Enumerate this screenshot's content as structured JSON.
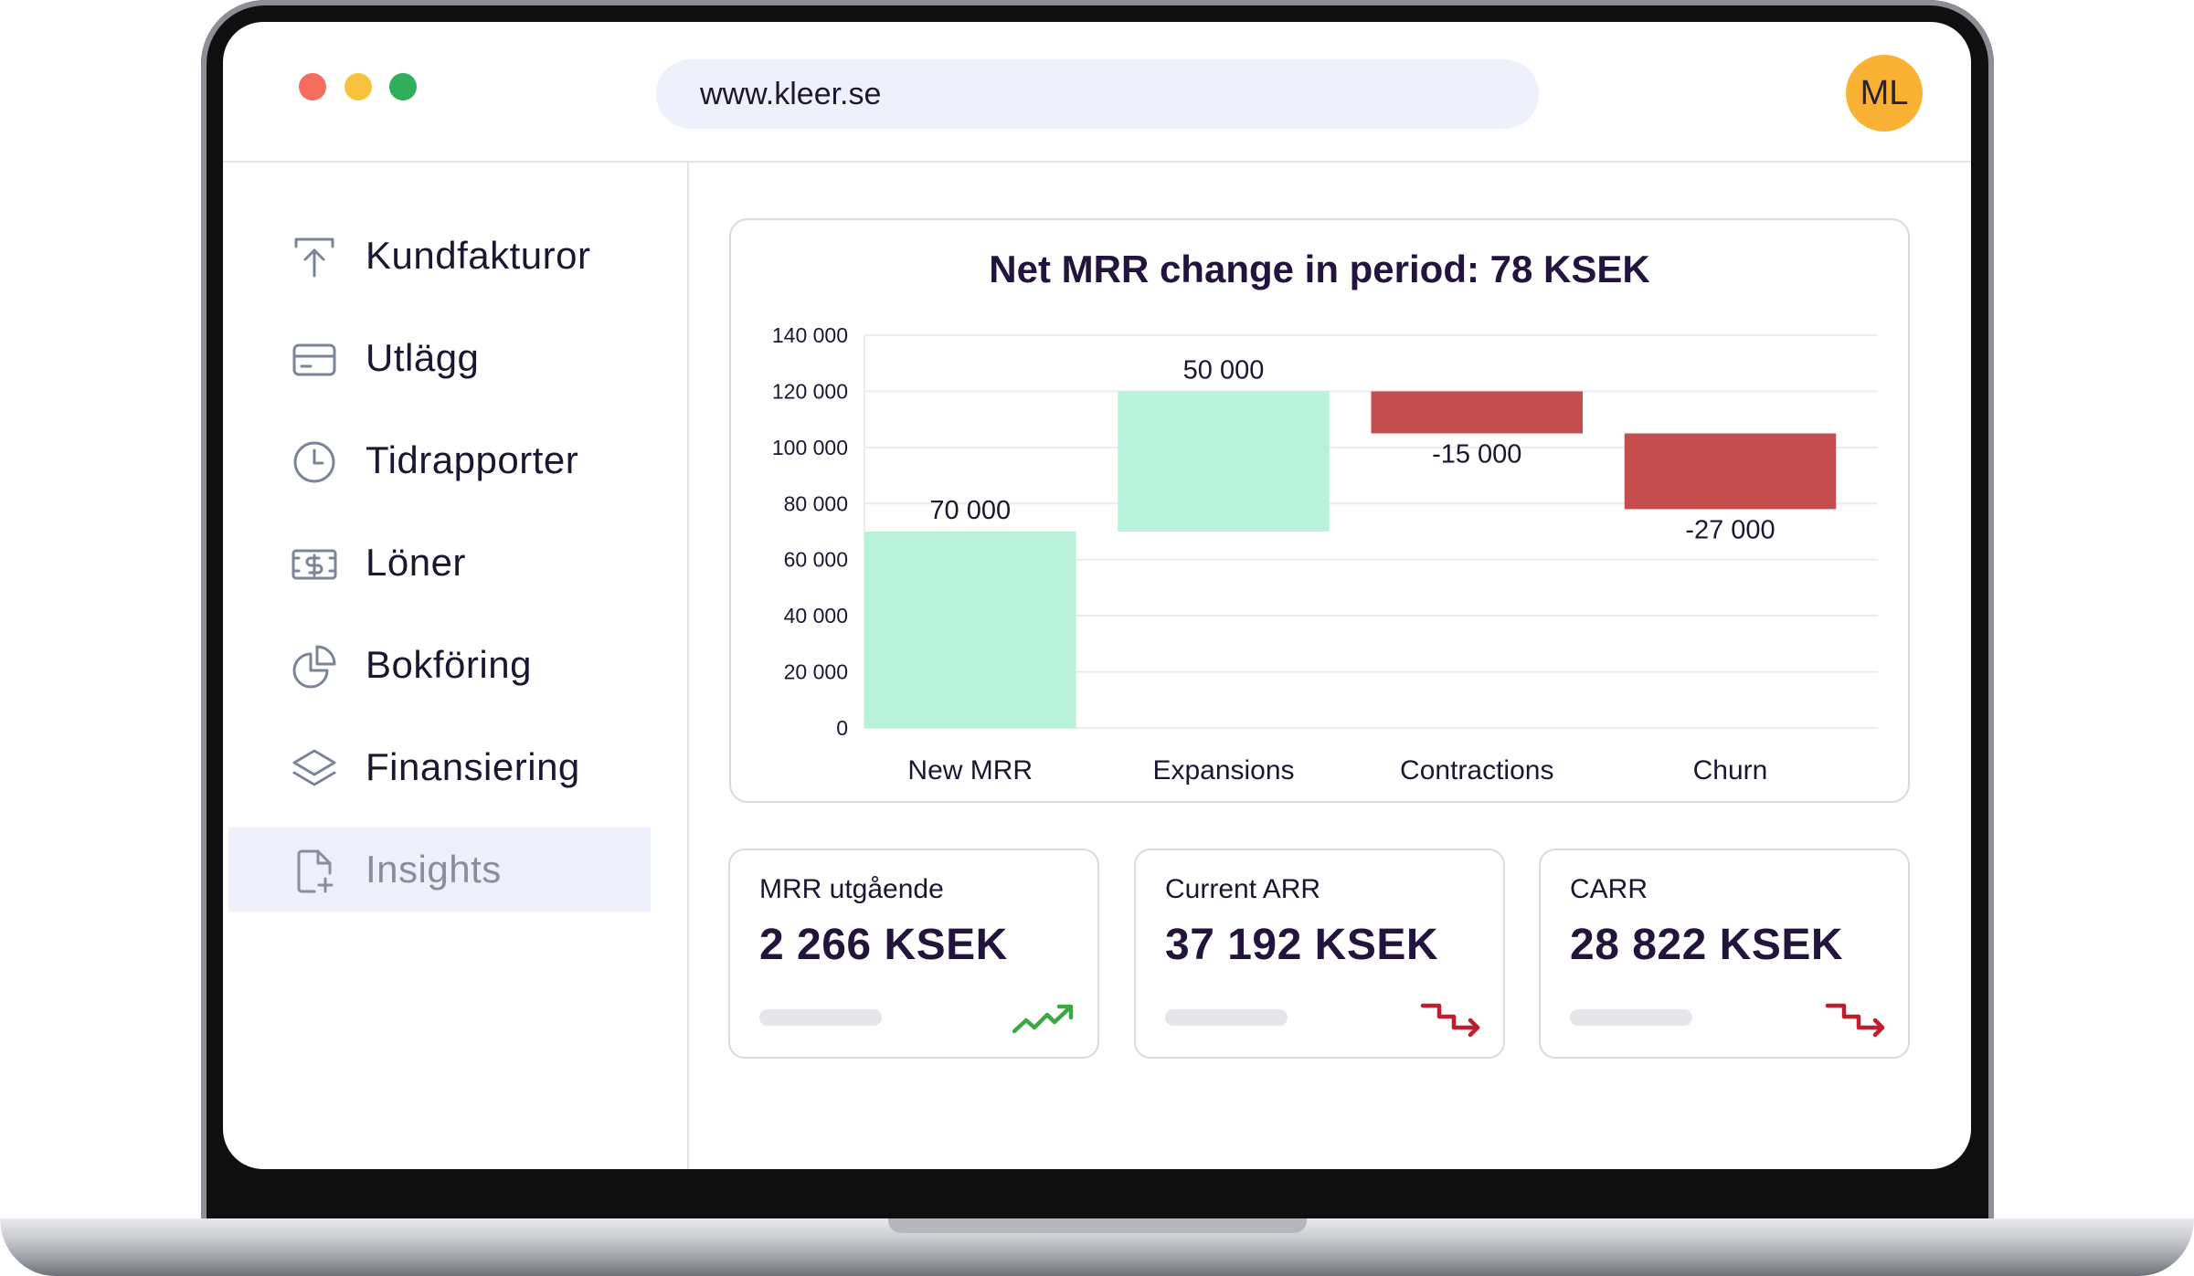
{
  "browser": {
    "url": "www.kleer.se",
    "avatar_initials": "ML"
  },
  "sidebar": {
    "items": [
      {
        "label": "Kundfakturor",
        "icon": "upload-icon"
      },
      {
        "label": "Utlägg",
        "icon": "credit-card-icon"
      },
      {
        "label": "Tidrapporter",
        "icon": "clock-icon"
      },
      {
        "label": "Löner",
        "icon": "money-bill-icon"
      },
      {
        "label": "Bokföring",
        "icon": "pie-chart-icon"
      },
      {
        "label": "Finansiering",
        "icon": "layers-icon"
      },
      {
        "label": "Insights",
        "icon": "document-plus-icon",
        "active": true
      }
    ]
  },
  "chart_data": {
    "type": "bar",
    "title": "Net MRR change in period: 78 KSEK",
    "categories": [
      "New MRR",
      "Expansions",
      "Contractions",
      "Churn"
    ],
    "values": [
      70000,
      50000,
      -15000,
      -27000
    ],
    "value_labels": [
      "70 000",
      "50 000",
      "-15 000",
      "-27 000"
    ],
    "ylim": [
      0,
      140000
    ],
    "yticks": [
      "0",
      "20 000",
      "40 000",
      "60 000",
      "80 000",
      "100 000",
      "120 000",
      "140 000"
    ],
    "grid": true,
    "colors": {
      "positive": "#b8f2da",
      "negative": "#c44e4e"
    }
  },
  "stats": [
    {
      "label": "MRR utgående",
      "value": "2 266 KSEK",
      "trend": "up",
      "trend_color": "#3aa843"
    },
    {
      "label": "Current ARR",
      "value": "37 192 KSEK",
      "trend": "down",
      "trend_color": "#c01d2e"
    },
    {
      "label": "CARR",
      "value": "28 822 KSEK",
      "trend": "down",
      "trend_color": "#c01d2e"
    }
  ]
}
